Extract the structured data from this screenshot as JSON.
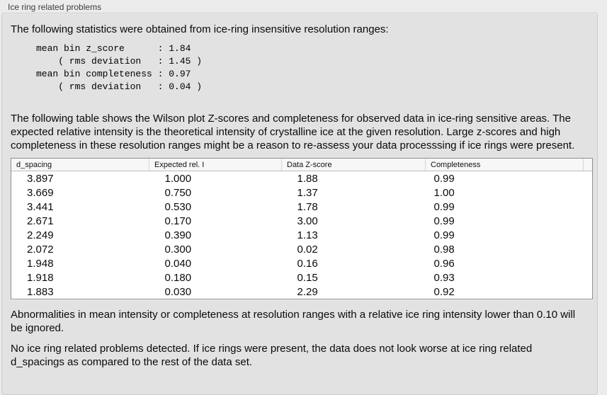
{
  "panel": {
    "title": "Ice ring related problems"
  },
  "intro": {
    "text": "The following statistics were obtained from ice-ring insensitive resolution ranges:"
  },
  "stats": {
    "block": "mean bin z_score      : 1.84\n    ( rms deviation   : 1.45 )\nmean bin completeness : 0.97\n    ( rms deviation   : 0.04 )",
    "mean_bin_z_score": "1.84",
    "z_score_rms_deviation": "1.45",
    "mean_bin_completeness": "0.97",
    "completeness_rms_deviation": "0.04"
  },
  "notes": {
    "table_note": "The following table shows the Wilson plot Z-scores and completeness for observed data in ice-ring sensitive areas. The expected relative intensity is the theoretical intensity of crystalline ice at the given resolution. Large z-scores and high completeness in these resolution ranges might be a reason to re-assess your data processsing if ice rings were present.",
    "ignore_note": "Abnormalities in mean intensity or completeness at resolution ranges with a relative ice ring intensity lower than 0.10 will be ignored.",
    "conclusion": "No ice ring related problems detected. If ice rings were present, the data does not look worse at ice ring related d_spacings as compared to the rest of the data set."
  },
  "table": {
    "columns": [
      "d_spacing",
      "Expected rel. I",
      "Data Z-score",
      "Completeness"
    ],
    "rows": [
      [
        "3.897",
        "1.000",
        "1.88",
        "0.99"
      ],
      [
        "3.669",
        "0.750",
        "1.37",
        "1.00"
      ],
      [
        "3.441",
        "0.530",
        "1.78",
        "0.99"
      ],
      [
        "2.671",
        "0.170",
        "3.00",
        "0.99"
      ],
      [
        "2.249",
        "0.390",
        "1.13",
        "0.99"
      ],
      [
        "2.072",
        "0.300",
        "0.02",
        "0.98"
      ],
      [
        "1.948",
        "0.040",
        "0.16",
        "0.96"
      ],
      [
        "1.918",
        "0.180",
        "0.15",
        "0.93"
      ],
      [
        "1.883",
        "0.030",
        "2.29",
        "0.92"
      ]
    ]
  },
  "colors": {
    "window_background": "#ececec",
    "groupbox_background": "#e2e2e2",
    "table_background": "#ffffff",
    "text": "#0a0a0a"
  }
}
